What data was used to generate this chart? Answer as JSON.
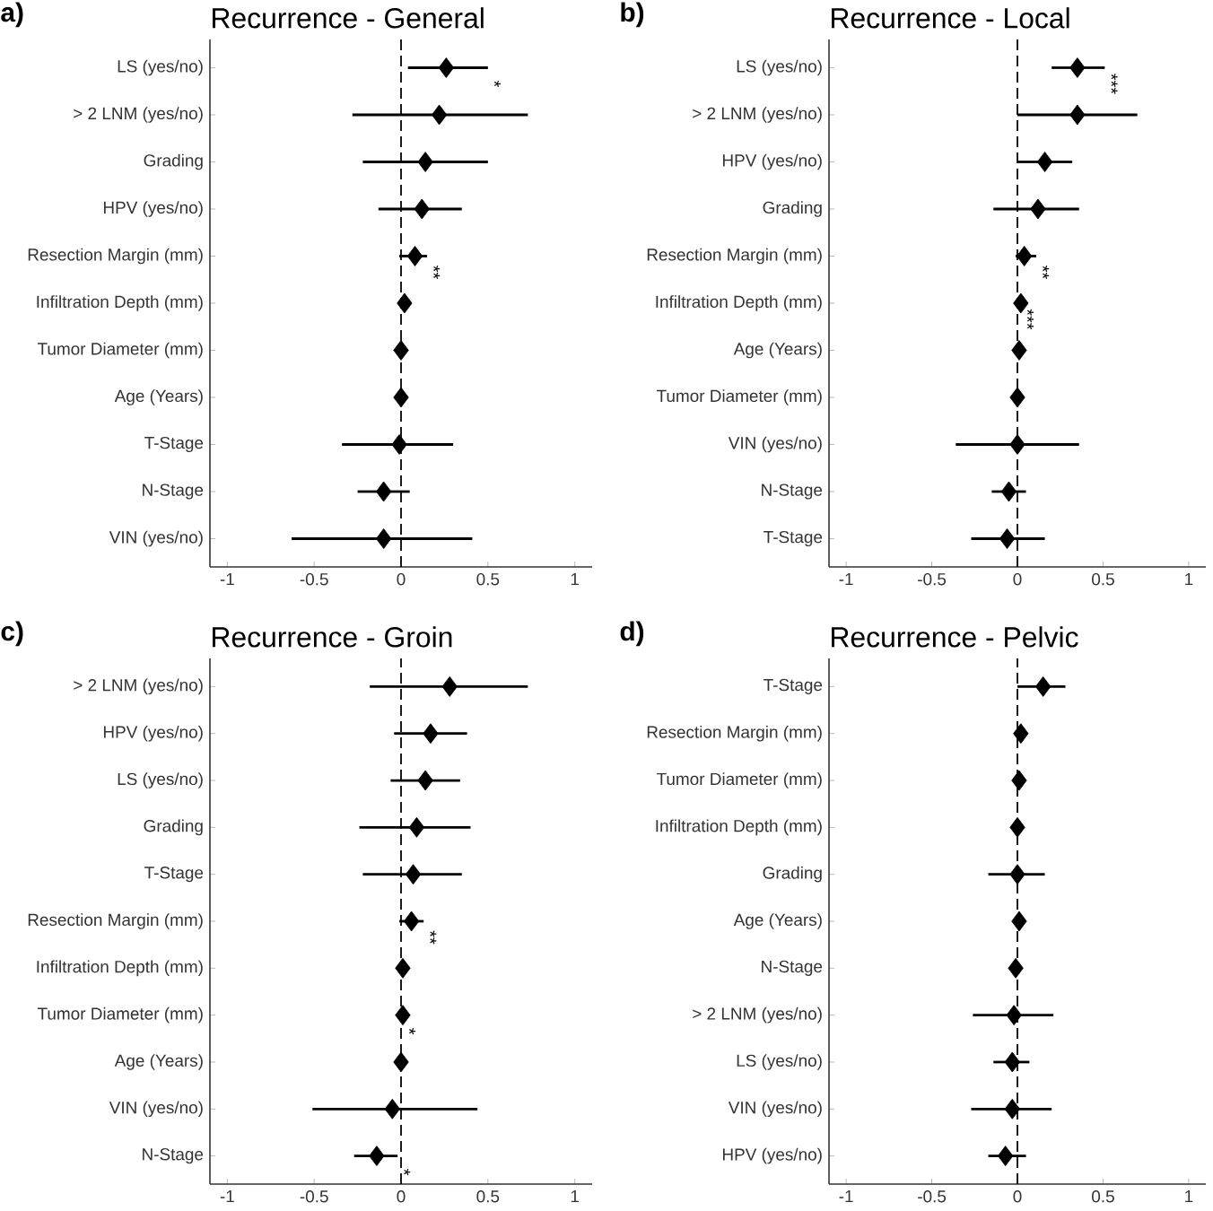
{
  "chart_data": [
    {
      "type": "scatter",
      "orientation": "horizontal",
      "title": "Recurrence - General",
      "annotations": [
        "a)"
      ],
      "value_labels": [
        "*",
        null,
        null,
        null,
        "**",
        null,
        null,
        null,
        null,
        null,
        null
      ],
      "categories": [
        "LS (yes/no)",
        "> 2 LNM (yes/no)",
        "Grading",
        "HPV (yes/no)",
        "Resection Margin (mm)",
        "Infiltration Depth (mm)",
        "Tumor Diameter (mm)",
        "Age (Years)",
        "T-Stage",
        "N-Stage",
        "VIN (yes/no)"
      ],
      "values": [
        0.26,
        0.22,
        0.14,
        0.12,
        0.08,
        0.02,
        0.0,
        0.0,
        -0.01,
        -0.1,
        -0.1
      ],
      "errors": [
        [
          0.04,
          0.5
        ],
        [
          -0.28,
          0.73
        ],
        [
          -0.22,
          0.5
        ],
        [
          -0.13,
          0.35
        ],
        [
          -0.01,
          0.15
        ],
        null,
        null,
        null,
        [
          -0.34,
          0.3
        ],
        [
          -0.25,
          0.05
        ],
        [
          -0.63,
          0.41
        ]
      ],
      "color": "#000000",
      "marker": "diamond",
      "xlim": [
        -1.1,
        1.1
      ],
      "xticks": [
        -1,
        -0.5,
        0,
        0.5,
        1
      ],
      "ref_lines": [
        {
          "axis": "x",
          "value": 0,
          "line_style": "dashed"
        }
      ]
    },
    {
      "type": "scatter",
      "orientation": "horizontal",
      "title": "Recurrence - Local",
      "annotations": [
        "b)"
      ],
      "value_labels": [
        "***",
        null,
        null,
        null,
        "**",
        "***",
        null,
        null,
        null,
        null,
        null
      ],
      "categories": [
        "LS (yes/no)",
        "> 2 LNM (yes/no)",
        "HPV (yes/no)",
        "Grading",
        "Resection Margin (mm)",
        "Infiltration Depth (mm)",
        "Age (Years)",
        "Tumor Diameter (mm)",
        "VIN (yes/no)",
        "N-Stage",
        "T-Stage"
      ],
      "values": [
        0.35,
        0.35,
        0.16,
        0.12,
        0.04,
        0.02,
        0.01,
        0.0,
        0.0,
        -0.05,
        -0.06
      ],
      "errors": [
        [
          0.2,
          0.51
        ],
        [
          0.0,
          0.7
        ],
        [
          0.0,
          0.32
        ],
        [
          -0.14,
          0.36
        ],
        [
          -0.01,
          0.11
        ],
        null,
        null,
        null,
        [
          -0.36,
          0.36
        ],
        [
          -0.15,
          0.05
        ],
        [
          -0.27,
          0.16
        ]
      ],
      "color": "#000000",
      "marker": "diamond",
      "xlim": [
        -1.1,
        1.1
      ],
      "xticks": [
        -1,
        -0.5,
        0,
        0.5,
        1
      ],
      "ref_lines": [
        {
          "axis": "x",
          "value": 0,
          "line_style": "dashed"
        }
      ]
    },
    {
      "type": "scatter",
      "orientation": "horizontal",
      "title": "Recurrence - Groin",
      "annotations": [
        "c)"
      ],
      "value_labels": [
        null,
        null,
        null,
        null,
        null,
        "**",
        null,
        "*",
        null,
        null,
        "*"
      ],
      "categories": [
        "> 2 LNM (yes/no)",
        "HPV (yes/no)",
        "LS (yes/no)",
        "Grading",
        "T-Stage",
        "Resection Margin (mm)",
        "Infiltration Depth (mm)",
        "Tumor Diameter (mm)",
        "Age (Years)",
        "VIN (yes/no)",
        "N-Stage"
      ],
      "values": [
        0.28,
        0.17,
        0.14,
        0.09,
        0.07,
        0.06,
        0.01,
        0.01,
        0.0,
        -0.05,
        -0.14
      ],
      "errors": [
        [
          -0.18,
          0.73
        ],
        [
          -0.04,
          0.38
        ],
        [
          -0.06,
          0.34
        ],
        [
          -0.24,
          0.4
        ],
        [
          -0.22,
          0.35
        ],
        [
          -0.01,
          0.13
        ],
        null,
        null,
        null,
        [
          -0.51,
          0.44
        ],
        [
          -0.27,
          -0.02
        ]
      ],
      "color": "#000000",
      "marker": "diamond",
      "xlim": [
        -1.1,
        1.1
      ],
      "xticks": [
        -1,
        -0.5,
        0,
        0.5,
        1
      ],
      "ref_lines": [
        {
          "axis": "x",
          "value": 0,
          "line_style": "dashed"
        }
      ]
    },
    {
      "type": "scatter",
      "orientation": "horizontal",
      "title": "Recurrence - Pelvic",
      "annotations": [
        "d)"
      ],
      "categories": [
        "T-Stage",
        "Resection Margin (mm)",
        "Tumor Diameter (mm)",
        "Infiltration Depth (mm)",
        "Grading",
        "Age (Years)",
        "N-Stage",
        "> 2 LNM (yes/no)",
        "LS (yes/no)",
        "VIN (yes/no)",
        "HPV (yes/no)"
      ],
      "values": [
        0.15,
        0.02,
        0.01,
        0.0,
        0.0,
        0.01,
        -0.01,
        -0.02,
        -0.03,
        -0.03,
        -0.07
      ],
      "errors": [
        [
          0.0,
          0.28
        ],
        null,
        null,
        null,
        [
          -0.17,
          0.16
        ],
        null,
        null,
        [
          -0.26,
          0.21
        ],
        [
          -0.14,
          0.07
        ],
        [
          -0.27,
          0.2
        ],
        [
          -0.17,
          0.05
        ]
      ],
      "color": "#000000",
      "marker": "diamond",
      "xlim": [
        -1.1,
        1.1
      ],
      "xticks": [
        -1,
        -0.5,
        0,
        0.5,
        1
      ],
      "ref_lines": [
        {
          "axis": "x",
          "value": 0,
          "line_style": "dashed"
        }
      ]
    }
  ]
}
